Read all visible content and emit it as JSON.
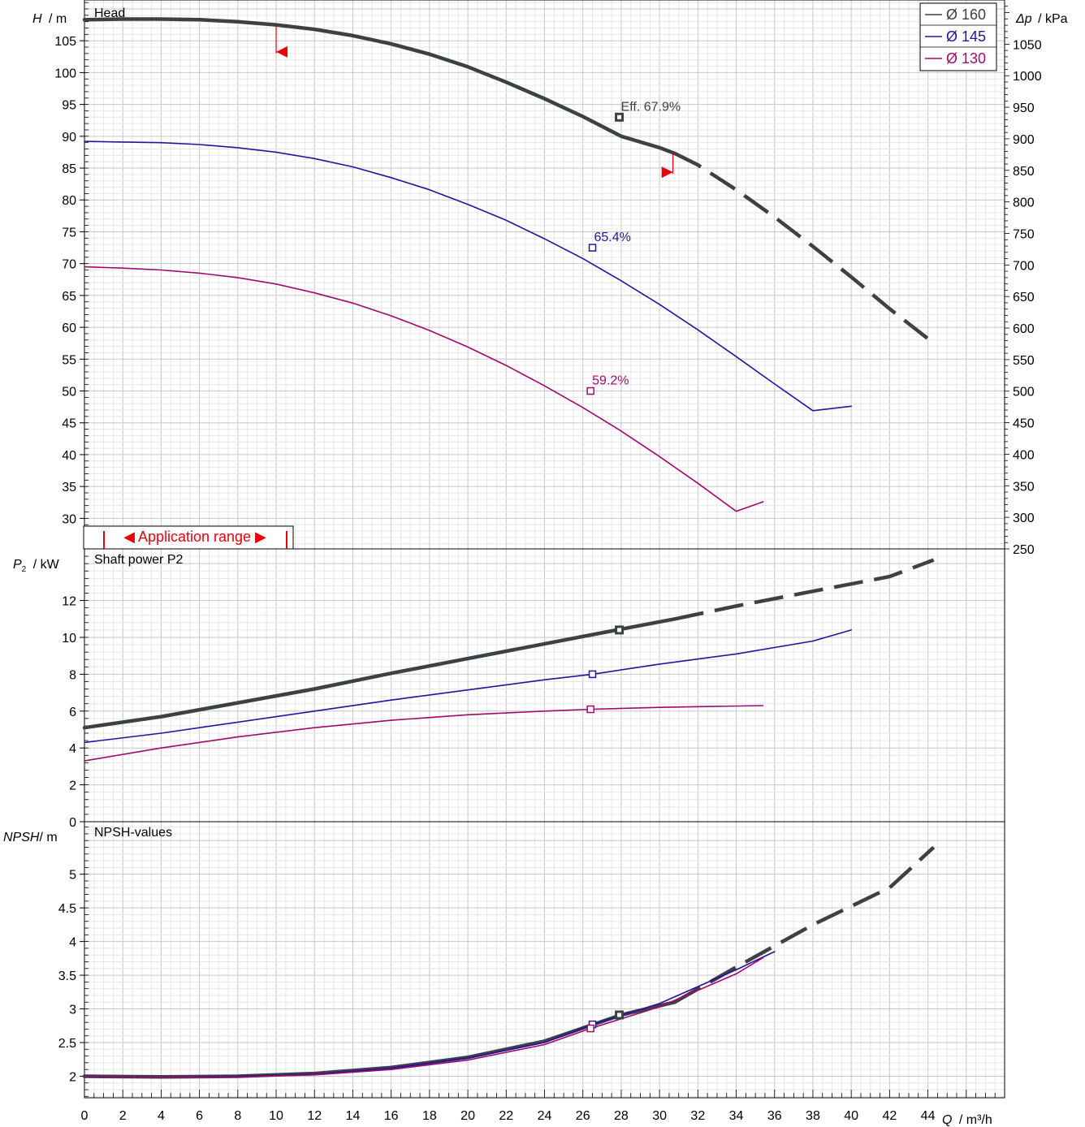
{
  "colors": {
    "d160": "#3c4146",
    "d145": "#2a0fa0",
    "d130": "#a0086e",
    "range": "#e8000c",
    "grid_major": "#c6c6c6",
    "grid_minor": "#e6e6e6"
  },
  "chart_data": [
    {
      "type": "line",
      "panel": "head",
      "title": "Head",
      "ylabel_symbol": "H",
      "ylabel_unit": "/ m",
      "y2label_symbol": "Δp",
      "y2label_unit": "/ kPa",
      "xlim": [
        0,
        48
      ],
      "ylim": [
        25.2,
        111.4
      ],
      "yticks": [
        30,
        35,
        40,
        45,
        50,
        55,
        60,
        65,
        70,
        75,
        80,
        85,
        90,
        95,
        100,
        105
      ],
      "y2lim": [
        250,
        1120
      ],
      "y2ticks": [
        250,
        300,
        350,
        400,
        450,
        500,
        550,
        600,
        650,
        700,
        750,
        800,
        850,
        900,
        950,
        1000,
        1050
      ],
      "grid": true,
      "legend_position": "top-right",
      "legend": [
        "Ø 160",
        "Ø 145",
        "Ø 130"
      ],
      "series": [
        {
          "name": "Ø 160",
          "color_key": "d160",
          "width": 4.5,
          "x": [
            0,
            2,
            4,
            6,
            8,
            10,
            12,
            14,
            16,
            18,
            20,
            22,
            24,
            26,
            28,
            30,
            30.8
          ],
          "y": [
            108.3,
            108.4,
            108.4,
            108.3,
            108.0,
            107.5,
            106.8,
            105.8,
            104.5,
            102.9,
            100.9,
            98.5,
            95.9,
            93.1,
            90.0,
            88.2,
            87.3
          ],
          "dashed_x": [
            30.8,
            32,
            34,
            36,
            38,
            40,
            42,
            44.3
          ],
          "dashed_y": [
            87.3,
            85.5,
            81.6,
            77.3,
            72.7,
            67.9,
            62.9,
            57.5
          ],
          "duty_point": {
            "x": 27.9,
            "y": 93.0,
            "label": "Eff.  67.9%"
          }
        },
        {
          "name": "Ø 145",
          "color_key": "d145",
          "width": 1.6,
          "x": [
            0,
            2,
            4,
            6,
            8,
            10,
            12,
            14,
            16,
            18,
            20,
            22,
            24,
            26,
            28,
            30,
            32,
            34,
            36,
            38,
            40
          ],
          "y": [
            89.2,
            89.1,
            89.0,
            88.7,
            88.2,
            87.5,
            86.5,
            85.2,
            83.5,
            81.6,
            79.3,
            76.8,
            73.9,
            70.8,
            67.3,
            63.6,
            59.6,
            55.4,
            51.1,
            46.9,
            47.6
          ],
          "duty_point": {
            "x": 26.5,
            "y": 72.5,
            "label": "65.4%"
          }
        },
        {
          "name": "Ø 130",
          "color_key": "d130",
          "width": 1.6,
          "x": [
            0,
            2,
            4,
            6,
            8,
            10,
            12,
            14,
            16,
            18,
            20,
            22,
            24,
            26,
            28,
            30,
            32,
            34,
            35.4
          ],
          "y": [
            69.5,
            69.3,
            69.0,
            68.5,
            67.8,
            66.8,
            65.4,
            63.8,
            61.8,
            59.5,
            56.9,
            54.0,
            50.8,
            47.4,
            43.7,
            39.7,
            35.5,
            31.1,
            32.6
          ],
          "duty_point": {
            "x": 26.4,
            "y": 50.0,
            "label": "59.2%"
          }
        }
      ],
      "application_range": {
        "label": "◀ Application range ▶",
        "x_min": 1,
        "x_max": 10.8
      },
      "range_markers": [
        {
          "x": 10.0,
          "y_top": 107.3,
          "y_bottom": 103.0,
          "direction": "left"
        },
        {
          "x": 30.7,
          "y_top": 87.5,
          "y_bottom": 84.1,
          "direction": "right"
        }
      ]
    },
    {
      "type": "line",
      "panel": "power",
      "title": "Shaft power P2",
      "ylabel_symbol": "P",
      "ylabel_subscript": "2",
      "ylabel_unit": "/ kW",
      "xlim": [
        0,
        48
      ],
      "ylim": [
        0,
        14.8
      ],
      "yticks": [
        0,
        2,
        4,
        6,
        8,
        10,
        12
      ],
      "grid": true,
      "series": [
        {
          "name": "Ø 160",
          "color_key": "d160",
          "width": 4.5,
          "x": [
            0,
            4,
            8,
            12,
            16,
            20,
            24,
            28,
            30.8
          ],
          "y": [
            5.1,
            5.7,
            6.45,
            7.2,
            8.05,
            8.85,
            9.65,
            10.45,
            11.0
          ],
          "dashed_x": [
            30.8,
            34,
            38,
            42,
            44.3
          ],
          "dashed_y": [
            11.0,
            11.7,
            12.5,
            13.3,
            14.2
          ],
          "duty_point": {
            "x": 27.9,
            "y": 10.4
          }
        },
        {
          "name": "Ø 145",
          "color_key": "d145",
          "width": 1.6,
          "x": [
            0,
            4,
            8,
            12,
            16,
            20,
            24,
            26.5,
            30,
            34,
            38,
            40
          ],
          "y": [
            4.3,
            4.8,
            5.4,
            6.0,
            6.6,
            7.15,
            7.7,
            8.0,
            8.55,
            9.1,
            9.8,
            10.4
          ],
          "duty_point": {
            "x": 26.5,
            "y": 8.0
          }
        },
        {
          "name": "Ø 130",
          "color_key": "d130",
          "width": 1.6,
          "x": [
            0,
            4,
            8,
            12,
            16,
            20,
            24,
            26.4,
            30,
            35.4
          ],
          "y": [
            3.3,
            4.0,
            4.6,
            5.1,
            5.5,
            5.8,
            6.0,
            6.1,
            6.2,
            6.3
          ],
          "duty_point": {
            "x": 26.4,
            "y": 6.1
          }
        }
      ]
    },
    {
      "type": "line",
      "panel": "npsh",
      "title": "NPSH-values",
      "ylabel_symbol": "NPSH",
      "ylabel_unit": "/ m",
      "xlabel_symbol": "Q",
      "xlabel_unit": "/ m³/h",
      "xlim": [
        0,
        48
      ],
      "xticks": [
        0,
        2,
        4,
        6,
        8,
        10,
        12,
        14,
        16,
        18,
        20,
        22,
        24,
        26,
        28,
        30,
        32,
        34,
        36,
        38,
        40,
        42,
        44
      ],
      "ylim": [
        1.68,
        5.78
      ],
      "yticks": [
        2,
        2.5,
        3,
        3.5,
        4,
        4.5,
        5
      ],
      "grid": true,
      "series": [
        {
          "name": "Ø 160",
          "color_key": "d160",
          "width": 4.5,
          "x": [
            0,
            4,
            8,
            12,
            16,
            20,
            24,
            28,
            30.8
          ],
          "y": [
            2.0,
            1.99,
            2.0,
            2.04,
            2.13,
            2.28,
            2.52,
            2.91,
            3.1
          ],
          "dashed_x": [
            30.8,
            34,
            38,
            42,
            44.3
          ],
          "dashed_y": [
            3.1,
            3.62,
            4.25,
            4.8,
            5.4
          ],
          "duty_point": {
            "x": 27.9,
            "y": 2.91
          }
        },
        {
          "name": "Ø 145",
          "color_key": "d145",
          "width": 1.6,
          "x": [
            0,
            4,
            8,
            12,
            16,
            20,
            24,
            26.5,
            30,
            34,
            36
          ],
          "y": [
            2.0,
            1.99,
            2.0,
            2.03,
            2.12,
            2.27,
            2.5,
            2.77,
            3.08,
            3.58,
            3.85
          ],
          "duty_point": {
            "x": 26.5,
            "y": 2.77
          }
        },
        {
          "name": "Ø 130",
          "color_key": "d130",
          "width": 1.6,
          "x": [
            0,
            4,
            8,
            12,
            16,
            20,
            24,
            26.4,
            30,
            34,
            35.4
          ],
          "y": [
            2.0,
            1.99,
            1.99,
            2.02,
            2.1,
            2.24,
            2.47,
            2.71,
            3.03,
            3.52,
            3.76
          ],
          "duty_point": {
            "x": 26.4,
            "y": 2.71
          }
        }
      ]
    }
  ]
}
